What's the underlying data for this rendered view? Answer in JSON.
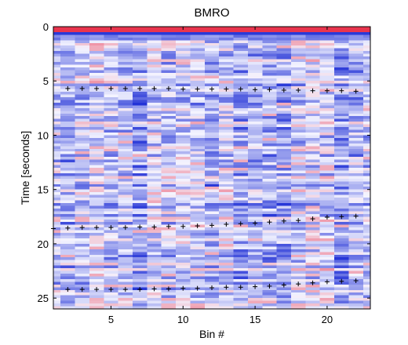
{
  "chart_data": {
    "type": "heatmap",
    "title": "BMRO",
    "xlabel": "Bin #",
    "ylabel": "Time [seconds]",
    "xlim": [
      1,
      23
    ],
    "ylim": [
      0,
      26
    ],
    "y_reversed": true,
    "xticks": [
      5,
      10,
      15,
      20
    ],
    "yticks": [
      0,
      5,
      10,
      15,
      20,
      25
    ],
    "grid": false,
    "colormap": "blue-white-red",
    "colors": {
      "low": "#1f2fd6",
      "mid": "#f4f4ff",
      "high": "#e8203a"
    },
    "series": [
      {
        "marker": "+",
        "x": [
          2,
          3,
          4,
          5,
          6,
          7,
          8,
          9,
          10,
          11,
          12,
          13,
          14,
          15,
          16,
          17,
          18,
          19,
          20,
          21,
          22
        ],
        "y": [
          5.7,
          5.7,
          5.7,
          5.7,
          5.7,
          5.7,
          5.7,
          5.7,
          5.75,
          5.75,
          5.75,
          5.75,
          5.75,
          5.8,
          5.8,
          5.85,
          5.85,
          5.9,
          5.9,
          5.9,
          5.95
        ]
      },
      {
        "marker": "+",
        "x": [
          1,
          2,
          3,
          4,
          5,
          6,
          7,
          8,
          9,
          10,
          11,
          12,
          13,
          14,
          15,
          16,
          17,
          18,
          19,
          20,
          21,
          22
        ],
        "y": [
          18.6,
          18.55,
          18.5,
          18.5,
          18.5,
          18.5,
          18.45,
          18.45,
          18.4,
          18.4,
          18.35,
          18.3,
          18.2,
          18.15,
          18.1,
          18.0,
          17.9,
          17.85,
          17.7,
          17.55,
          17.5,
          17.45
        ]
      },
      {
        "marker": "+",
        "x": [
          2,
          3,
          4,
          5,
          6,
          7,
          8,
          9,
          10,
          11,
          12,
          13,
          14,
          15,
          16,
          17,
          18,
          19,
          20,
          21,
          22
        ],
        "y": [
          24.2,
          24.2,
          24.2,
          24.2,
          24.2,
          24.2,
          24.15,
          24.15,
          24.1,
          24.1,
          24.05,
          24.0,
          24.0,
          23.95,
          23.9,
          23.8,
          23.7,
          23.6,
          23.5,
          23.45,
          23.4
        ]
      }
    ]
  }
}
